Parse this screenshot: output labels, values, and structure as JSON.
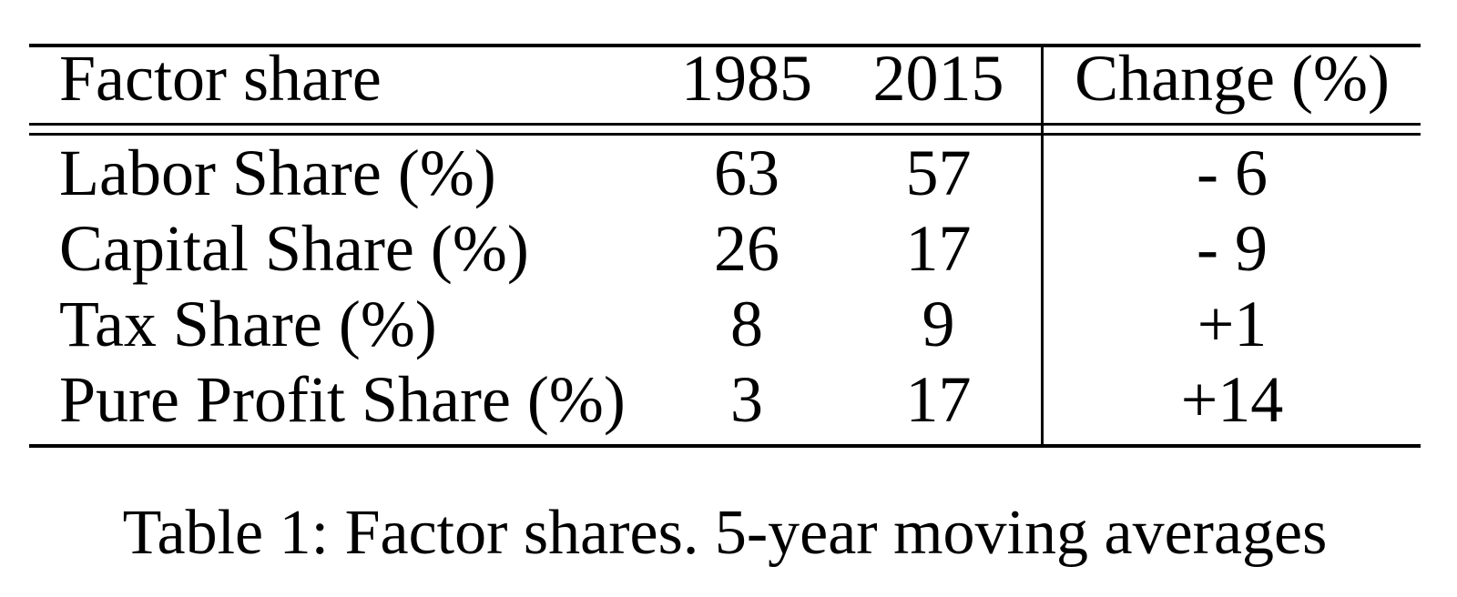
{
  "table": {
    "columns": [
      "Factor share",
      "1985",
      "2015",
      "Change (%)"
    ],
    "rows": [
      {
        "label": "Labor Share (%)",
        "v1985": "63",
        "v2015": "57",
        "change": "- 6"
      },
      {
        "label": "Capital Share (%)",
        "v1985": "26",
        "v2015": "17",
        "change": "- 9"
      },
      {
        "label": "Tax Share (%)",
        "v1985": "8",
        "v2015": "9",
        "change": "+1"
      },
      {
        "label": "Pure Profit Share (%)",
        "v1985": "3",
        "v2015": "17",
        "change": "+14"
      }
    ]
  },
  "caption": "Table 1: Factor shares. 5-year moving averages",
  "colors": {
    "text": "#000000",
    "background": "#ffffff",
    "rule": "#000000"
  },
  "chart_data": {
    "type": "table",
    "title": "Table 1: Factor shares. 5-year moving averages",
    "columns": [
      "Factor share",
      "1985",
      "2015",
      "Change (%)"
    ],
    "rows": [
      [
        "Labor Share (%)",
        63,
        57,
        -6
      ],
      [
        "Capital Share (%)",
        26,
        17,
        -9
      ],
      [
        "Tax Share (%)",
        8,
        9,
        1
      ],
      [
        "Pure Profit Share (%)",
        3,
        17,
        14
      ]
    ]
  }
}
